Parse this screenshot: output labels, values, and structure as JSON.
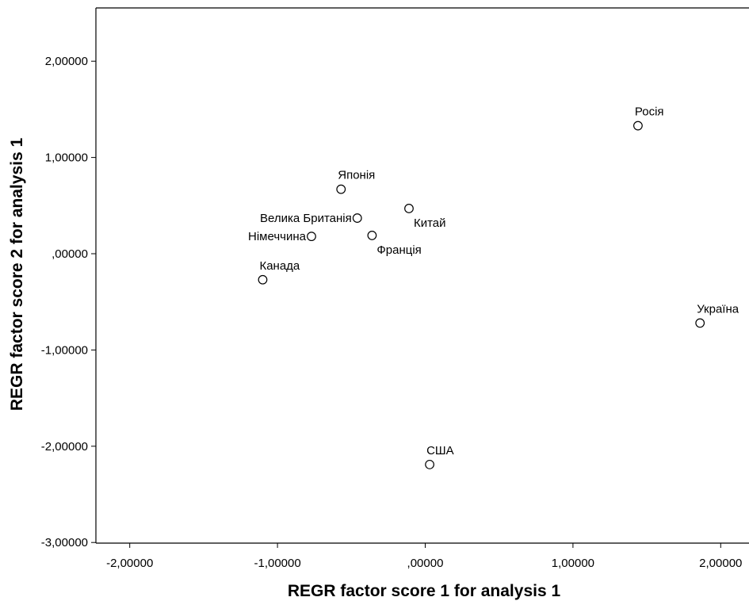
{
  "chart_data": {
    "type": "scatter",
    "xlabel": "REGR factor score   1 for analysis 1",
    "ylabel": "REGR factor score   2 for analysis 1",
    "xlim": [
      -2.1,
      2.1
    ],
    "ylim": [
      -3.0,
      2.55
    ],
    "x_ticks": [
      {
        "value": -2,
        "label": "-2,00000"
      },
      {
        "value": -1,
        "label": "-1,00000"
      },
      {
        "value": 0,
        "label": ",00000"
      },
      {
        "value": 1,
        "label": "1,00000"
      },
      {
        "value": 2,
        "label": "2,00000"
      }
    ],
    "y_ticks": [
      {
        "value": 2,
        "label": "2,00000"
      },
      {
        "value": 1,
        "label": "1,00000"
      },
      {
        "value": 0,
        "label": ",00000"
      },
      {
        "value": -1,
        "label": "-1,00000"
      },
      {
        "value": -2,
        "label": "-2,00000"
      },
      {
        "value": -3,
        "label": "-3,00000"
      }
    ],
    "grid": false,
    "points": [
      {
        "label": "Росія",
        "x": 1.44,
        "y": 1.33,
        "label_pos": "above"
      },
      {
        "label": "Японія",
        "x": -0.57,
        "y": 0.67,
        "label_pos": "above"
      },
      {
        "label": "Велика Британія",
        "x": -0.46,
        "y": 0.37,
        "label_pos": "left"
      },
      {
        "label": "Китай",
        "x": -0.11,
        "y": 0.47,
        "label_pos": "below-right"
      },
      {
        "label": "Німеччина",
        "x": -0.77,
        "y": 0.18,
        "label_pos": "left"
      },
      {
        "label": "Франція",
        "x": -0.36,
        "y": 0.19,
        "label_pos": "below-right"
      },
      {
        "label": "Канада",
        "x": -1.1,
        "y": -0.27,
        "label_pos": "above"
      },
      {
        "label": "Україна",
        "x": 1.86,
        "y": -0.72,
        "label_pos": "above"
      },
      {
        "label": "США",
        "x": 0.03,
        "y": -2.19,
        "label_pos": "above"
      }
    ]
  }
}
